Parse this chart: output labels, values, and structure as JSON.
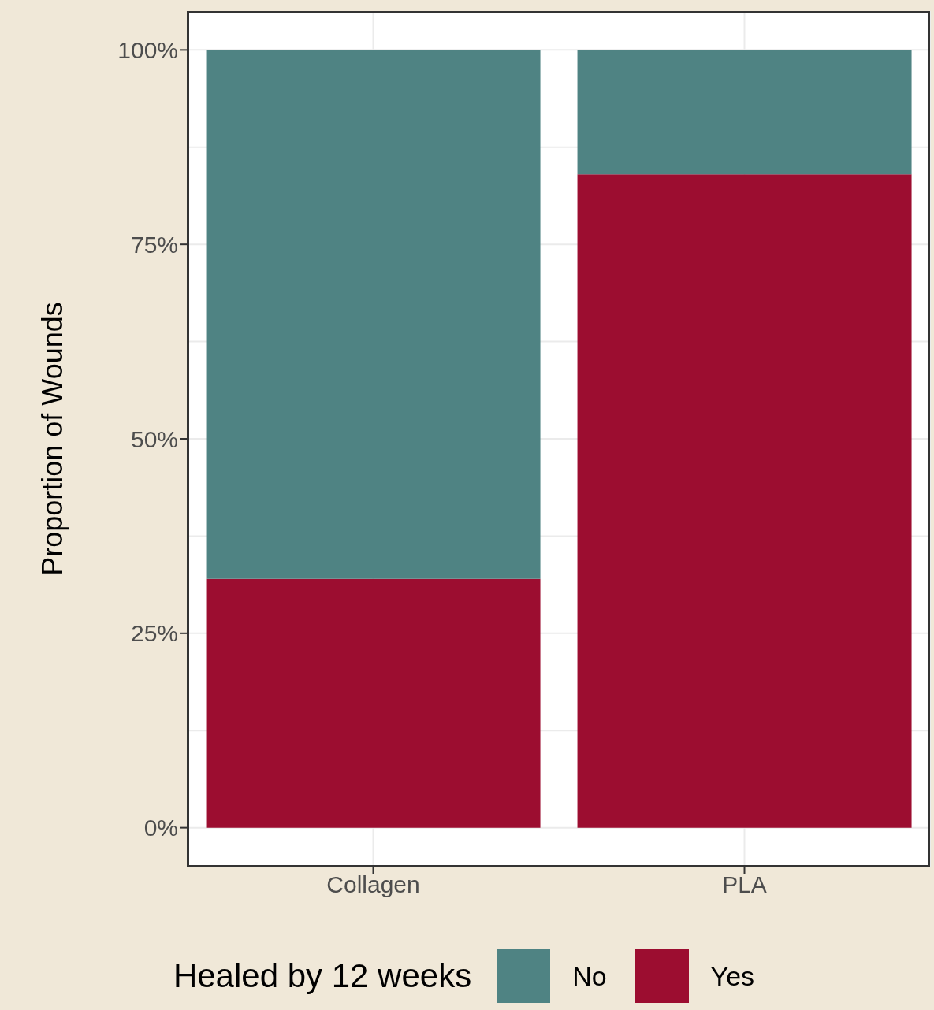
{
  "chart_data": {
    "type": "bar",
    "stacked": true,
    "categories": [
      "Collagen",
      "PLA"
    ],
    "series": [
      {
        "name": "Yes",
        "color": "#9c0d30",
        "values": [
          32,
          84
        ]
      },
      {
        "name": "No",
        "color": "#4f8383",
        "values": [
          68,
          16
        ]
      }
    ],
    "ylabel": "Proportion of Wounds",
    "legend_title": "Healed by 12 weeks",
    "legend": "bottom",
    "ylim": [
      -5,
      105
    ],
    "yticks": [
      {
        "value": 0,
        "label": "0%"
      },
      {
        "value": 25,
        "label": "25%"
      },
      {
        "value": 50,
        "label": "50%"
      },
      {
        "value": 75,
        "label": "75%"
      },
      {
        "value": 100,
        "label": "100%"
      }
    ],
    "grid": true
  }
}
